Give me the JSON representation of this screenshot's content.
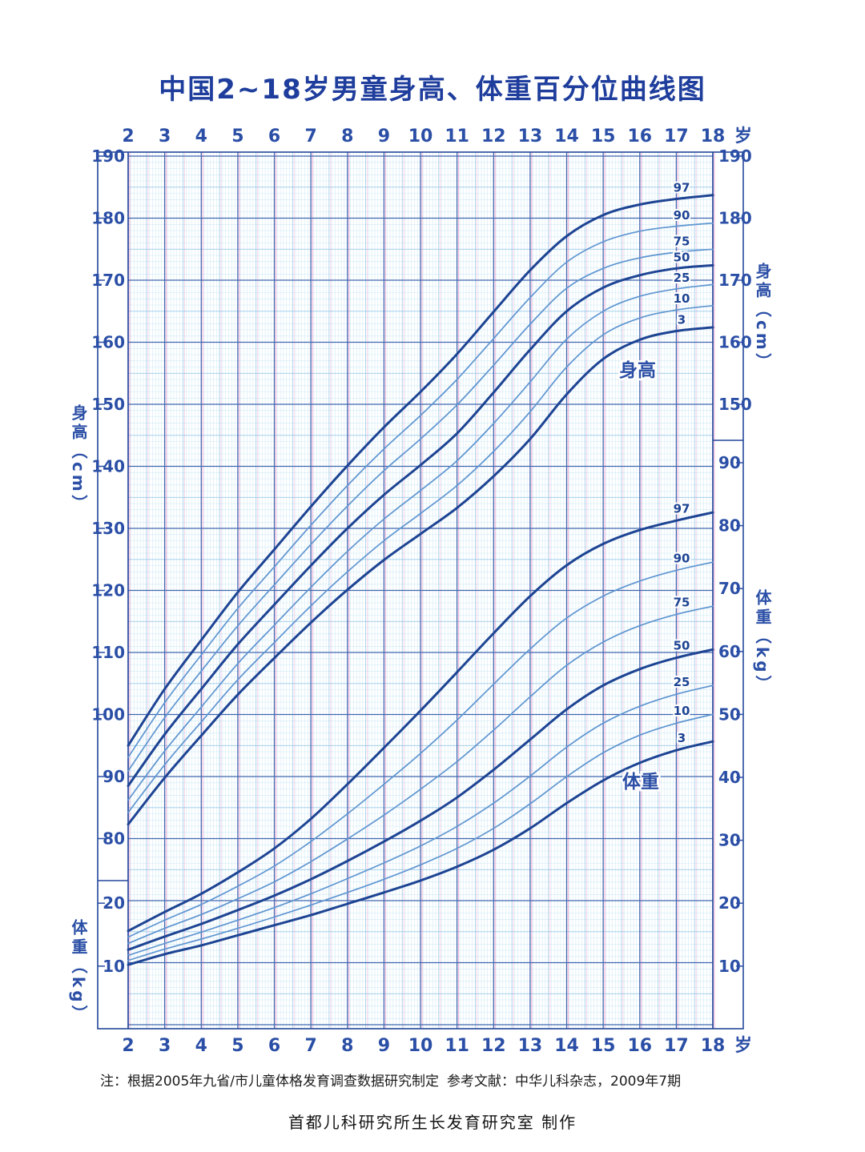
{
  "title": "中国2~18岁男童身高、体重百分位曲线图",
  "axis": {
    "age_ticks": [
      2,
      3,
      4,
      5,
      6,
      7,
      8,
      9,
      10,
      11,
      12,
      13,
      14,
      15,
      16,
      17,
      18
    ],
    "age_unit": "岁",
    "left_height_ticks": [
      190,
      180,
      170,
      160,
      150,
      140,
      130,
      120,
      110,
      100,
      90,
      80
    ],
    "left_weight_ticks": [
      20,
      10
    ],
    "right_height_ticks": [
      190,
      180,
      170,
      160,
      150
    ],
    "right_weight_ticks": [
      90,
      80,
      70,
      60,
      50,
      40,
      30,
      20,
      10
    ],
    "left_height_title": "身高（cm）",
    "left_weight_title": "体重（kg）",
    "right_height_title": "身高（cm）",
    "right_weight_title": "体重（kg）"
  },
  "curve_labels": {
    "height": "身高",
    "weight": "体重"
  },
  "footnotes": {
    "note": "注：根据2005年九省/市儿童体格发育调查数据研究制定",
    "reference": "参考文献：中华儿科杂志，2009年7期",
    "credit": "首都儿科研究所生长发育研究室  制作"
  },
  "colors": {
    "title_text": "#1e3d9c",
    "axis_text": "#2b4fa6",
    "border": "#23479a",
    "grid_minor": "#cfe9f6",
    "grid_medium": "#9bcbe9",
    "grid_major": "#4068b0",
    "grid_pink": "#e26ab0",
    "curve_main": "#1d4493",
    "curve_light": "#5e95d0"
  },
  "chart_data": {
    "type": "line",
    "title": "中国2~18岁男童身高、体重百分位曲线图",
    "x": [
      2,
      3,
      4,
      5,
      6,
      7,
      8,
      9,
      10,
      11,
      12,
      13,
      14,
      15,
      16,
      17,
      18
    ],
    "x_unit": "岁",
    "percentiles": [
      97,
      90,
      75,
      50,
      25,
      10,
      3
    ],
    "height_axis": {
      "unit": "cm",
      "min": 80,
      "max": 190
    },
    "weight_axis": {
      "unit": "kg",
      "min": 10,
      "max": 90
    },
    "grid": true,
    "height_series": [
      {
        "percentile": "97",
        "values": [
          95.0,
          104.1,
          112.0,
          119.7,
          126.6,
          133.5,
          140.1,
          146.3,
          152.0,
          158.1,
          164.9,
          171.6,
          177.1,
          180.5,
          182.2,
          183.1,
          183.7
        ]
      },
      {
        "percentile": "90",
        "values": [
          93.1,
          101.9,
          109.6,
          117.1,
          123.8,
          130.5,
          136.9,
          142.8,
          148.2,
          154.0,
          160.6,
          167.2,
          172.9,
          176.2,
          177.9,
          178.7,
          179.2
        ]
      },
      {
        "percentile": "75",
        "values": [
          90.9,
          99.5,
          107.0,
          114.3,
          120.9,
          127.4,
          133.6,
          139.3,
          144.4,
          149.9,
          156.3,
          162.9,
          168.7,
          171.9,
          173.6,
          174.5,
          175.0
        ]
      },
      {
        "percentile": "50",
        "values": [
          88.5,
          96.8,
          104.1,
          111.3,
          117.7,
          124.0,
          130.0,
          135.4,
          140.2,
          145.3,
          151.9,
          158.8,
          165.0,
          168.8,
          170.8,
          171.9,
          172.4
        ]
      },
      {
        "percentile": "25",
        "values": [
          86.2,
          94.1,
          101.2,
          108.2,
          114.4,
          120.5,
          126.3,
          131.5,
          136.1,
          140.9,
          146.9,
          153.6,
          160.5,
          165.0,
          167.4,
          168.6,
          169.3
        ]
      },
      {
        "percentile": "10",
        "values": [
          84.2,
          91.9,
          98.8,
          105.6,
          111.6,
          117.5,
          123.0,
          128.0,
          132.4,
          136.9,
          142.4,
          148.8,
          156.0,
          161.2,
          163.9,
          165.2,
          165.9
        ]
      },
      {
        "percentile": "3",
        "values": [
          82.3,
          89.8,
          96.6,
          103.2,
          109.1,
          114.8,
          120.1,
          124.9,
          129.1,
          133.3,
          138.4,
          144.4,
          151.6,
          157.3,
          160.4,
          161.8,
          162.4
        ]
      }
    ],
    "weight_series": [
      {
        "percentile": "97",
        "values": [
          15.6,
          18.6,
          21.5,
          24.9,
          28.7,
          33.4,
          38.9,
          44.7,
          50.6,
          56.7,
          62.9,
          68.8,
          73.7,
          77.1,
          79.3,
          80.8,
          82.1
        ]
      },
      {
        "percentile": "90",
        "values": [
          14.6,
          17.3,
          19.8,
          22.7,
          25.9,
          29.8,
          34.2,
          38.9,
          43.8,
          49.1,
          54.8,
          60.4,
          65.3,
          68.8,
          71.2,
          72.9,
          74.2
        ]
      },
      {
        "percentile": "75",
        "values": [
          13.6,
          16.0,
          18.2,
          20.7,
          23.4,
          26.6,
          30.2,
          34.0,
          38.1,
          42.5,
          47.5,
          52.8,
          57.8,
          61.5,
          64.1,
          65.9,
          67.2
        ]
      },
      {
        "percentile": "50",
        "values": [
          12.6,
          14.7,
          16.7,
          18.9,
          21.2,
          23.8,
          26.7,
          29.8,
          33.1,
          36.8,
          41.2,
          46.0,
          50.8,
          54.6,
          57.2,
          59.0,
          60.3
        ]
      },
      {
        "percentile": "25",
        "values": [
          11.7,
          13.6,
          15.4,
          17.3,
          19.3,
          21.5,
          23.9,
          26.4,
          29.1,
          32.2,
          35.9,
          40.2,
          44.8,
          48.6,
          51.3,
          53.2,
          54.6
        ]
      },
      {
        "percentile": "10",
        "values": [
          10.9,
          12.7,
          14.3,
          16.0,
          17.8,
          19.7,
          21.7,
          23.8,
          26.1,
          28.7,
          31.9,
          35.8,
          40.1,
          43.9,
          46.7,
          48.6,
          50.0
        ]
      },
      {
        "percentile": "3",
        "values": [
          10.2,
          11.9,
          13.3,
          14.9,
          16.5,
          18.1,
          19.9,
          21.7,
          23.6,
          25.8,
          28.5,
          31.9,
          35.9,
          39.5,
          42.3,
          44.3,
          45.7
        ]
      }
    ]
  }
}
